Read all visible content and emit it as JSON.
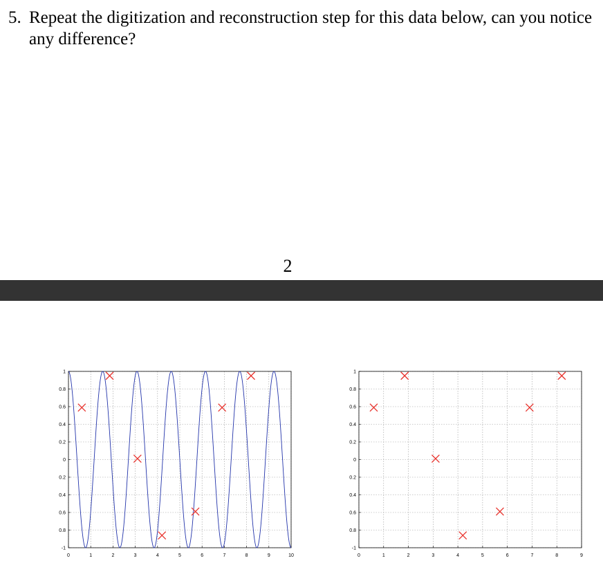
{
  "question": {
    "number": "5.",
    "text": "Repeat the digitization and reconstruction step for this data below, can you notice any difference?"
  },
  "page_number": "2",
  "chart_data": [
    {
      "type": "line",
      "grid": true,
      "xlim": [
        0,
        10
      ],
      "ylim": [
        -1,
        1
      ],
      "xticks": [
        0,
        1,
        2,
        3,
        4,
        5,
        6,
        7,
        8,
        9,
        10
      ],
      "yticks": [
        -1,
        -0.8,
        -0.6,
        -0.4,
        -0.2,
        0,
        0.2,
        0.4,
        0.6,
        0.8,
        1
      ],
      "ytick_labels": [
        "-1",
        "-0.8",
        "-0.6",
        "-0.4",
        "-0.2",
        "0",
        "0.2",
        "0.4",
        "0.6",
        "0.8",
        "1"
      ],
      "series": [
        {
          "kind": "line",
          "color": "#2233aa",
          "function": "sin(2*pi*0.65*x + pi/2)",
          "x_range": [
            0,
            10
          ],
          "samples": 600
        },
        {
          "kind": "markers",
          "marker": "x",
          "color": "#e8322c",
          "x": [
            0.6,
            1.85,
            3.1,
            4.2,
            5.7,
            6.9,
            8.2
          ],
          "y": [
            0.59,
            0.95,
            0.01,
            -0.86,
            -0.59,
            0.59,
            0.95
          ]
        }
      ]
    },
    {
      "type": "scatter",
      "grid": true,
      "xlim": [
        0,
        9
      ],
      "ylim": [
        -1,
        1
      ],
      "xticks": [
        0,
        1,
        2,
        3,
        4,
        5,
        6,
        7,
        8,
        9
      ],
      "yticks": [
        -1,
        -0.8,
        -0.6,
        -0.4,
        -0.2,
        0,
        0.2,
        0.4,
        0.6,
        0.8,
        1
      ],
      "ytick_labels": [
        "-1",
        "-0.8",
        "-0.6",
        "-0.4",
        "-0.2",
        "0",
        "0.2",
        "0.4",
        "0.6",
        "0.8",
        "1"
      ],
      "series": [
        {
          "kind": "markers",
          "marker": "x",
          "color": "#e8322c",
          "x": [
            0.6,
            1.85,
            3.1,
            4.2,
            5.7,
            6.9,
            8.2
          ],
          "y": [
            0.59,
            0.95,
            0.01,
            -0.86,
            -0.59,
            0.59,
            0.95
          ]
        }
      ]
    }
  ]
}
